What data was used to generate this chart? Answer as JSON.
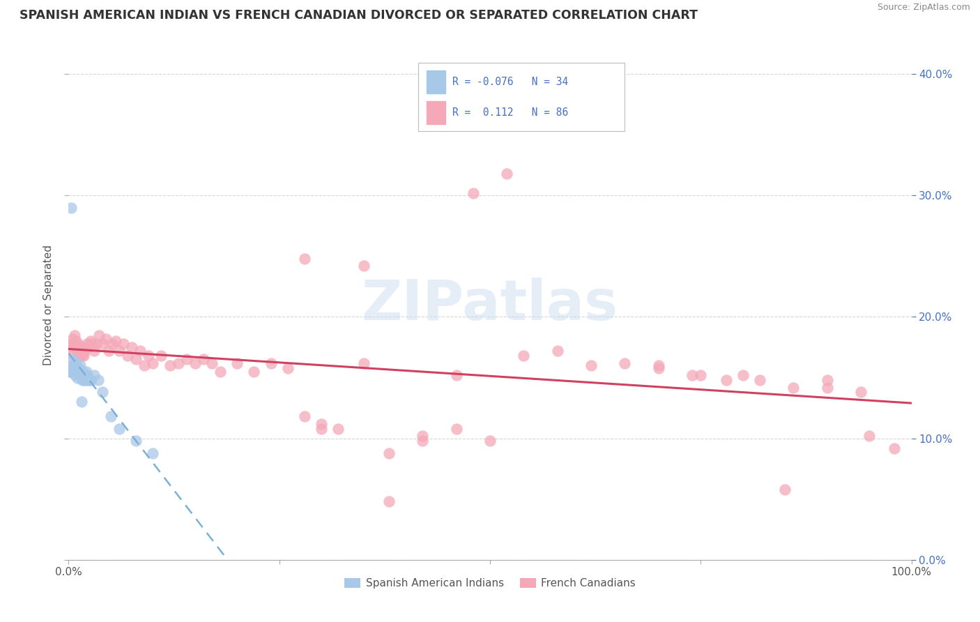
{
  "title": "SPANISH AMERICAN INDIAN VS FRENCH CANADIAN DIVORCED OR SEPARATED CORRELATION CHART",
  "source": "Source: ZipAtlas.com",
  "ylabel": "Divorced or Separated",
  "legend_label1": "Spanish American Indians",
  "legend_label2": "French Canadians",
  "r1": -0.076,
  "n1": 34,
  "r2": 0.112,
  "n2": 86,
  "color1": "#a8c8e8",
  "color2": "#f4a8b8",
  "line1_color": "#7ab0d8",
  "line2_color": "#d04060",
  "background": "#ffffff",
  "watermark": "ZIPatlas",
  "xmin": 0.0,
  "xmax": 1.0,
  "ymin": 0.0,
  "ymax": 0.42,
  "yticks": [
    0.0,
    0.1,
    0.2,
    0.3,
    0.4
  ],
  "blue_points_x": [
    0.001,
    0.002,
    0.003,
    0.004,
    0.005,
    0.005,
    0.006,
    0.007,
    0.008,
    0.009,
    0.01,
    0.011,
    0.012,
    0.013,
    0.014,
    0.015,
    0.016,
    0.017,
    0.018,
    0.019,
    0.02,
    0.021,
    0.022,
    0.023,
    0.025,
    0.027,
    0.03,
    0.035,
    0.04,
    0.05,
    0.06,
    0.08,
    0.1,
    0.003
  ],
  "blue_points_y": [
    0.155,
    0.155,
    0.155,
    0.16,
    0.16,
    0.165,
    0.155,
    0.158,
    0.152,
    0.162,
    0.15,
    0.155,
    0.158,
    0.152,
    0.16,
    0.13,
    0.148,
    0.155,
    0.148,
    0.152,
    0.148,
    0.155,
    0.152,
    0.148,
    0.148,
    0.148,
    0.152,
    0.148,
    0.138,
    0.118,
    0.108,
    0.098,
    0.088,
    0.29
  ],
  "pink_points_x": [
    0.002,
    0.003,
    0.004,
    0.005,
    0.006,
    0.007,
    0.008,
    0.009,
    0.01,
    0.011,
    0.012,
    0.013,
    0.014,
    0.015,
    0.016,
    0.017,
    0.018,
    0.019,
    0.02,
    0.022,
    0.024,
    0.026,
    0.028,
    0.03,
    0.033,
    0.036,
    0.04,
    0.044,
    0.048,
    0.052,
    0.056,
    0.06,
    0.065,
    0.07,
    0.075,
    0.08,
    0.085,
    0.09,
    0.095,
    0.1,
    0.11,
    0.12,
    0.13,
    0.14,
    0.15,
    0.16,
    0.17,
    0.18,
    0.2,
    0.22,
    0.24,
    0.26,
    0.28,
    0.3,
    0.32,
    0.35,
    0.38,
    0.42,
    0.46,
    0.5,
    0.54,
    0.58,
    0.62,
    0.66,
    0.7,
    0.74,
    0.78,
    0.82,
    0.86,
    0.9,
    0.94,
    0.98,
    0.48,
    0.52,
    0.35,
    0.28,
    0.38,
    0.42,
    0.3,
    0.46,
    0.7,
    0.75,
    0.8,
    0.85,
    0.9,
    0.95
  ],
  "pink_points_y": [
    0.17,
    0.178,
    0.175,
    0.182,
    0.178,
    0.185,
    0.175,
    0.18,
    0.172,
    0.178,
    0.168,
    0.175,
    0.172,
    0.168,
    0.175,
    0.17,
    0.168,
    0.172,
    0.175,
    0.178,
    0.175,
    0.18,
    0.178,
    0.172,
    0.178,
    0.185,
    0.178,
    0.182,
    0.172,
    0.178,
    0.18,
    0.172,
    0.178,
    0.168,
    0.175,
    0.165,
    0.172,
    0.16,
    0.168,
    0.162,
    0.168,
    0.16,
    0.162,
    0.165,
    0.162,
    0.165,
    0.162,
    0.155,
    0.162,
    0.155,
    0.162,
    0.158,
    0.118,
    0.112,
    0.108,
    0.162,
    0.088,
    0.098,
    0.152,
    0.098,
    0.168,
    0.172,
    0.16,
    0.162,
    0.158,
    0.152,
    0.148,
    0.148,
    0.142,
    0.142,
    0.138,
    0.092,
    0.302,
    0.318,
    0.242,
    0.248,
    0.048,
    0.102,
    0.108,
    0.108,
    0.16,
    0.152,
    0.152,
    0.058,
    0.148,
    0.102
  ]
}
